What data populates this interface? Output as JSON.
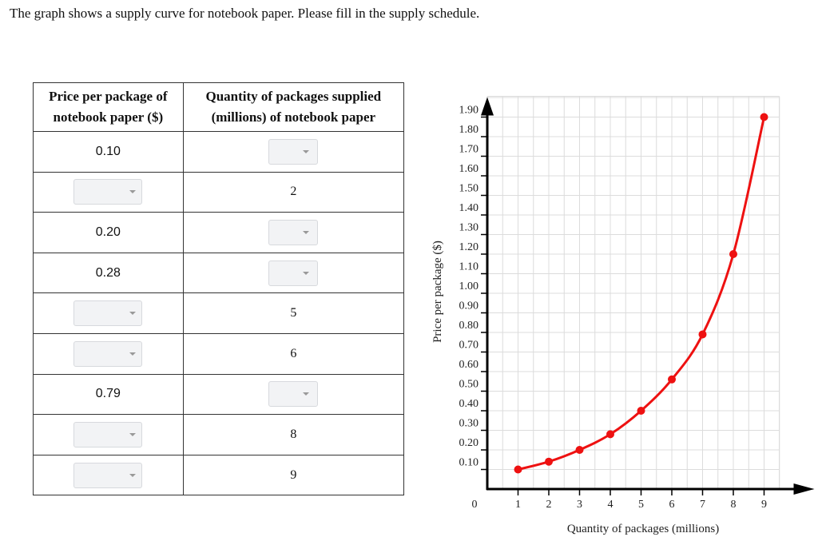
{
  "prompt": "The graph shows a supply curve for notebook paper. Please fill in the supply schedule.",
  "table": {
    "header_price_line1": "Price per package of",
    "header_price_line2": "notebook paper ($)",
    "header_qty_line1": "Quantity of packages supplied",
    "header_qty_line2": "(millions) of notebook paper",
    "rows": [
      {
        "price": "0.10",
        "quantity": null
      },
      {
        "price": null,
        "quantity": "2"
      },
      {
        "price": "0.20",
        "quantity": null
      },
      {
        "price": "0.28",
        "quantity": null
      },
      {
        "price": null,
        "quantity": "5"
      },
      {
        "price": null,
        "quantity": "6"
      },
      {
        "price": "0.79",
        "quantity": null
      },
      {
        "price": null,
        "quantity": "8"
      },
      {
        "price": null,
        "quantity": "9"
      }
    ]
  },
  "chart_data": {
    "type": "line",
    "title": "",
    "xlabel": "Quantity of packages (millions)",
    "ylabel": "Price per package ($)",
    "xlim": [
      0,
      9
    ],
    "ylim": [
      0,
      1.9
    ],
    "x_ticks": [
      "0",
      "1",
      "2",
      "3",
      "4",
      "5",
      "6",
      "7",
      "8",
      "9"
    ],
    "y_ticks": [
      "0.10",
      "0.20",
      "0.30",
      "0.40",
      "0.50",
      "0.60",
      "0.70",
      "0.80",
      "0.90",
      "1.00",
      "1.10",
      "1.20",
      "1.30",
      "1.40",
      "1.50",
      "1.60",
      "1.70",
      "1.80",
      "1.90"
    ],
    "grid": true,
    "curve_color": "#ee1111",
    "points": [
      {
        "x": 1,
        "y": 0.1
      },
      {
        "x": 2,
        "y": 0.14
      },
      {
        "x": 3,
        "y": 0.2
      },
      {
        "x": 4,
        "y": 0.28
      },
      {
        "x": 5,
        "y": 0.4
      },
      {
        "x": 6,
        "y": 0.56
      },
      {
        "x": 7,
        "y": 0.79
      },
      {
        "x": 8,
        "y": 1.2
      },
      {
        "x": 9,
        "y": 1.9
      }
    ]
  }
}
